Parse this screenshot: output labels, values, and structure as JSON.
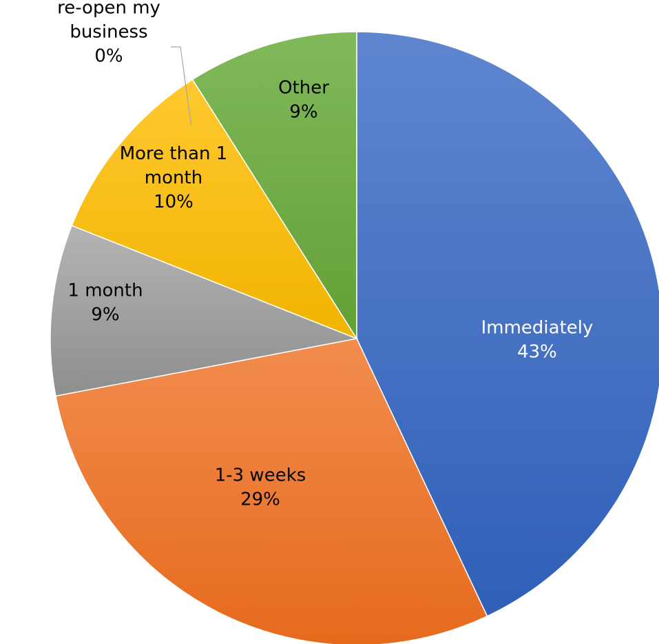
{
  "chart_data": {
    "type": "pie",
    "title": "",
    "start_angle_deg": 0,
    "direction": "clockwise",
    "slices": [
      {
        "label": "Immediately",
        "label_lines": [
          "Immediately"
        ],
        "value": 43,
        "percent_label": "43%",
        "color": "#4472c4",
        "color_light": "#5f86cf",
        "color_dark": "#2f5fb8",
        "label_color": "#ffffff"
      },
      {
        "label": "1-3 weeks",
        "label_lines": [
          "1-3 weeks"
        ],
        "value": 29,
        "percent_label": "29%",
        "color": "#ed7d31",
        "color_light": "#f28c4e",
        "color_dark": "#e56a1c",
        "label_color": "#000000"
      },
      {
        "label": "1 month",
        "label_lines": [
          "1 month"
        ],
        "value": 9,
        "percent_label": "9%",
        "color": "#a5a5a5",
        "color_light": "#b4b4b4",
        "color_dark": "#8e8e8e",
        "label_color": "#000000"
      },
      {
        "label": "More than 1 month",
        "label_lines": [
          "More than 1",
          "month"
        ],
        "value": 10,
        "percent_label": "10%",
        "color": "#ffc000",
        "color_light": "#ffc930",
        "color_dark": "#f0b400",
        "label_color": "#000000"
      },
      {
        "label": "I will not be able to re-open my business",
        "label_lines": [
          "I will not be able to",
          "re-open my",
          "business"
        ],
        "value": 0,
        "percent_label": "0%",
        "color": "#5b9bd5",
        "color_light": "#5b9bd5",
        "color_dark": "#5b9bd5",
        "label_color": "#000000",
        "label_outside": true
      },
      {
        "label": "Other",
        "label_lines": [
          "Other"
        ],
        "value": 9,
        "percent_label": "9%",
        "color": "#70ad47",
        "color_light": "#80b95a",
        "color_dark": "#62a036",
        "label_color": "#000000"
      }
    ]
  }
}
